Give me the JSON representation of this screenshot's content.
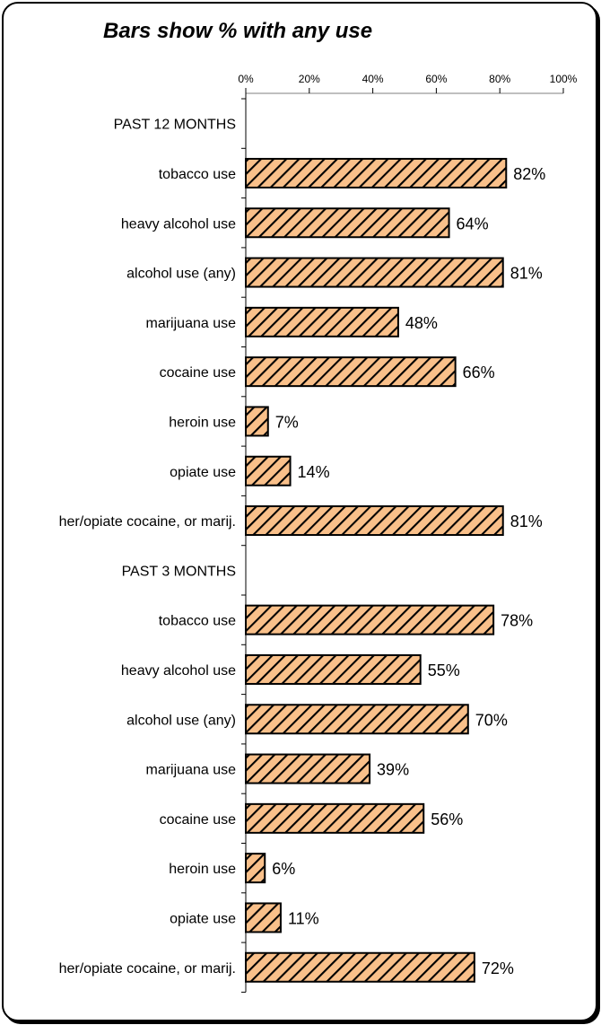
{
  "chart_data": {
    "type": "bar",
    "orientation": "horizontal",
    "title": "Bars show % with any use",
    "xlim": [
      0,
      100
    ],
    "x_ticks": [
      "0%",
      "20%",
      "40%",
      "60%",
      "80%",
      "100%"
    ],
    "tick_position": "top",
    "unit": "%",
    "bar_fill": "#f9c08a",
    "bar_hatch": "#000000",
    "grid": false,
    "categories": [
      "PAST 12 MONTHS",
      "tobacco use",
      "heavy alcohol use",
      "alcohol use (any)",
      "marijuana use",
      "cocaine use",
      "heroin use",
      "opiate use",
      "her/opiate cocaine, or marij.",
      "PAST 3 MONTHS",
      "tobacco use",
      "heavy alcohol use",
      "alcohol use (any)",
      "marijuana use",
      "cocaine use",
      "heroin use",
      "opiate use",
      "her/opiate cocaine, or marij."
    ],
    "values": [
      null,
      82,
      64,
      81,
      48,
      66,
      7,
      14,
      81,
      null,
      78,
      55,
      70,
      39,
      56,
      6,
      11,
      72
    ],
    "data_labels": [
      "",
      "82%",
      "64%",
      "81%",
      "48%",
      "66%",
      "7%",
      "14%",
      "81%",
      "",
      "78%",
      "55%",
      "70%",
      "39%",
      "56%",
      "6%",
      "11%",
      "72%"
    ]
  }
}
